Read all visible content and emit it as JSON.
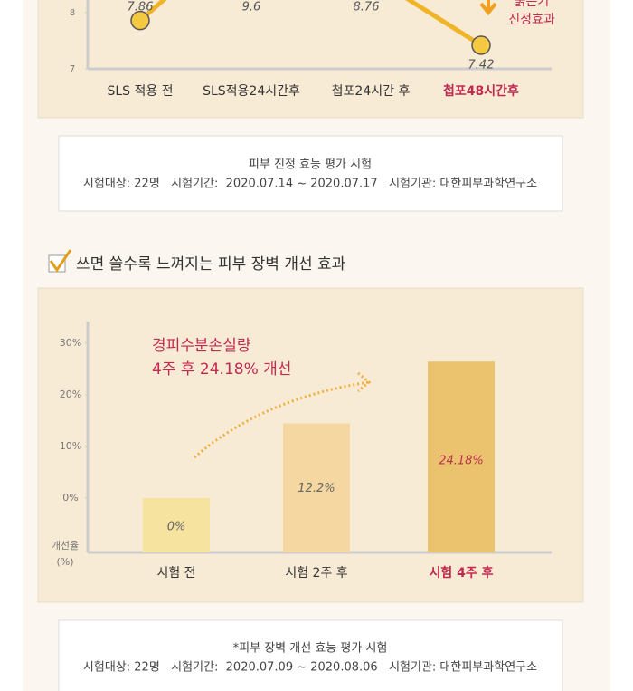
{
  "chart_data": [
    {
      "type": "line",
      "categories": [
        "SLS 적용 전",
        "SLS적용24시간후",
        "첩포24시간 후",
        "첩포48시간후"
      ],
      "category_label_colors": [
        "#333333",
        "#333333",
        "#333333",
        "#c2294f"
      ],
      "values": [
        7.86,
        9.6,
        8.76,
        7.42
      ],
      "color": "#f0b429",
      "marker_color": "#f5c842",
      "ylim": [
        7,
        10
      ],
      "yticks": [
        7,
        8
      ],
      "annotation": [
        "붉은기",
        "진정효과"
      ],
      "annotation_color": "#c2294f"
    },
    {
      "type": "bar",
      "categories": [
        "시험 전",
        "시험 2주 후",
        "시험 4주 후"
      ],
      "category_label_colors": [
        "#333333",
        "#333333",
        "#c2294f"
      ],
      "values": [
        0,
        12.2,
        24.18
      ],
      "value_labels": [
        "0%",
        "12.2%",
        "24.18%"
      ],
      "colors": [
        "#f7e3a0",
        "#f5d7a1",
        "#ebc36f"
      ],
      "ylim": [
        -10.5,
        34
      ],
      "yticks": [
        {
          "value": 0,
          "label": "0%"
        },
        {
          "value": 10,
          "label": "10%"
        },
        {
          "value": 20,
          "label": "20%"
        },
        {
          "value": 30,
          "label": "30%"
        }
      ],
      "ylabel": [
        "개선율",
        "(%)"
      ],
      "annotation": [
        "경피수분손실량",
        "4주 후 24.18% 개선"
      ],
      "annotation_color": "#c2294f"
    }
  ],
  "note1": {
    "title": "피부 진정 효능 평가 시험",
    "detail": "시험대상: 22명   시험기간:  2020.07.14 ~ 2020.07.17   시험기관: 대한피부과학연구소"
  },
  "heading": "쓰면 쓸수록 느껴지는 피부 장벽 개선 효과",
  "note2": {
    "title": "*피부 장벽 개선 효능 평가 시험",
    "detail": "시험대상: 22명   시험기간:  2020.07.09 ~ 2020.08.06   시험기관: 대한피부과학연구소"
  }
}
